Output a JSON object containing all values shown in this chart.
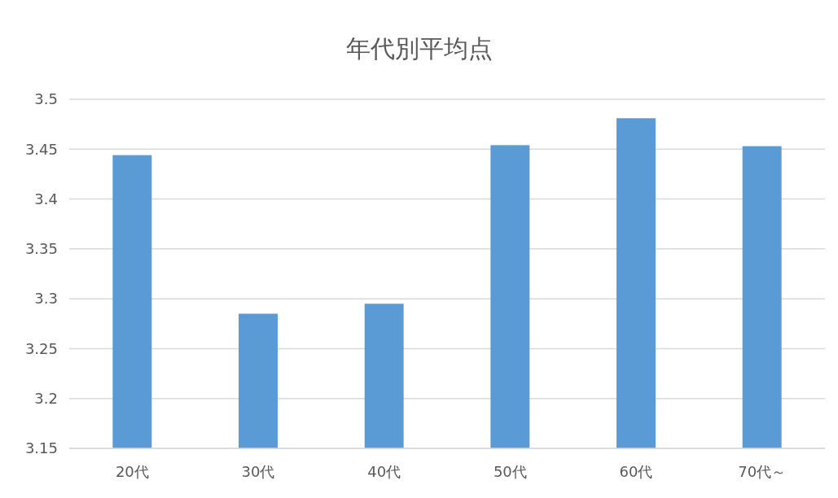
{
  "chart_data": {
    "type": "bar",
    "title": "年代別平均点",
    "categories": [
      "20代",
      "30代",
      "40代",
      "50代",
      "60代",
      "70代～"
    ],
    "values": [
      3.444,
      3.285,
      3.295,
      3.454,
      3.481,
      3.453
    ],
    "color": "#5b9bd5",
    "ylim": [
      3.15,
      3.5
    ],
    "yticks": [
      {
        "value": 3.15,
        "label": "3.15"
      },
      {
        "value": 3.2,
        "label": "3.2"
      },
      {
        "value": 3.25,
        "label": "3.25"
      },
      {
        "value": 3.3,
        "label": "3.3"
      },
      {
        "value": 3.35,
        "label": "3.35"
      },
      {
        "value": 3.4,
        "label": "3.4"
      },
      {
        "value": 3.45,
        "label": "3.45"
      },
      {
        "value": 3.5,
        "label": "3.5"
      }
    ],
    "grid": true
  }
}
